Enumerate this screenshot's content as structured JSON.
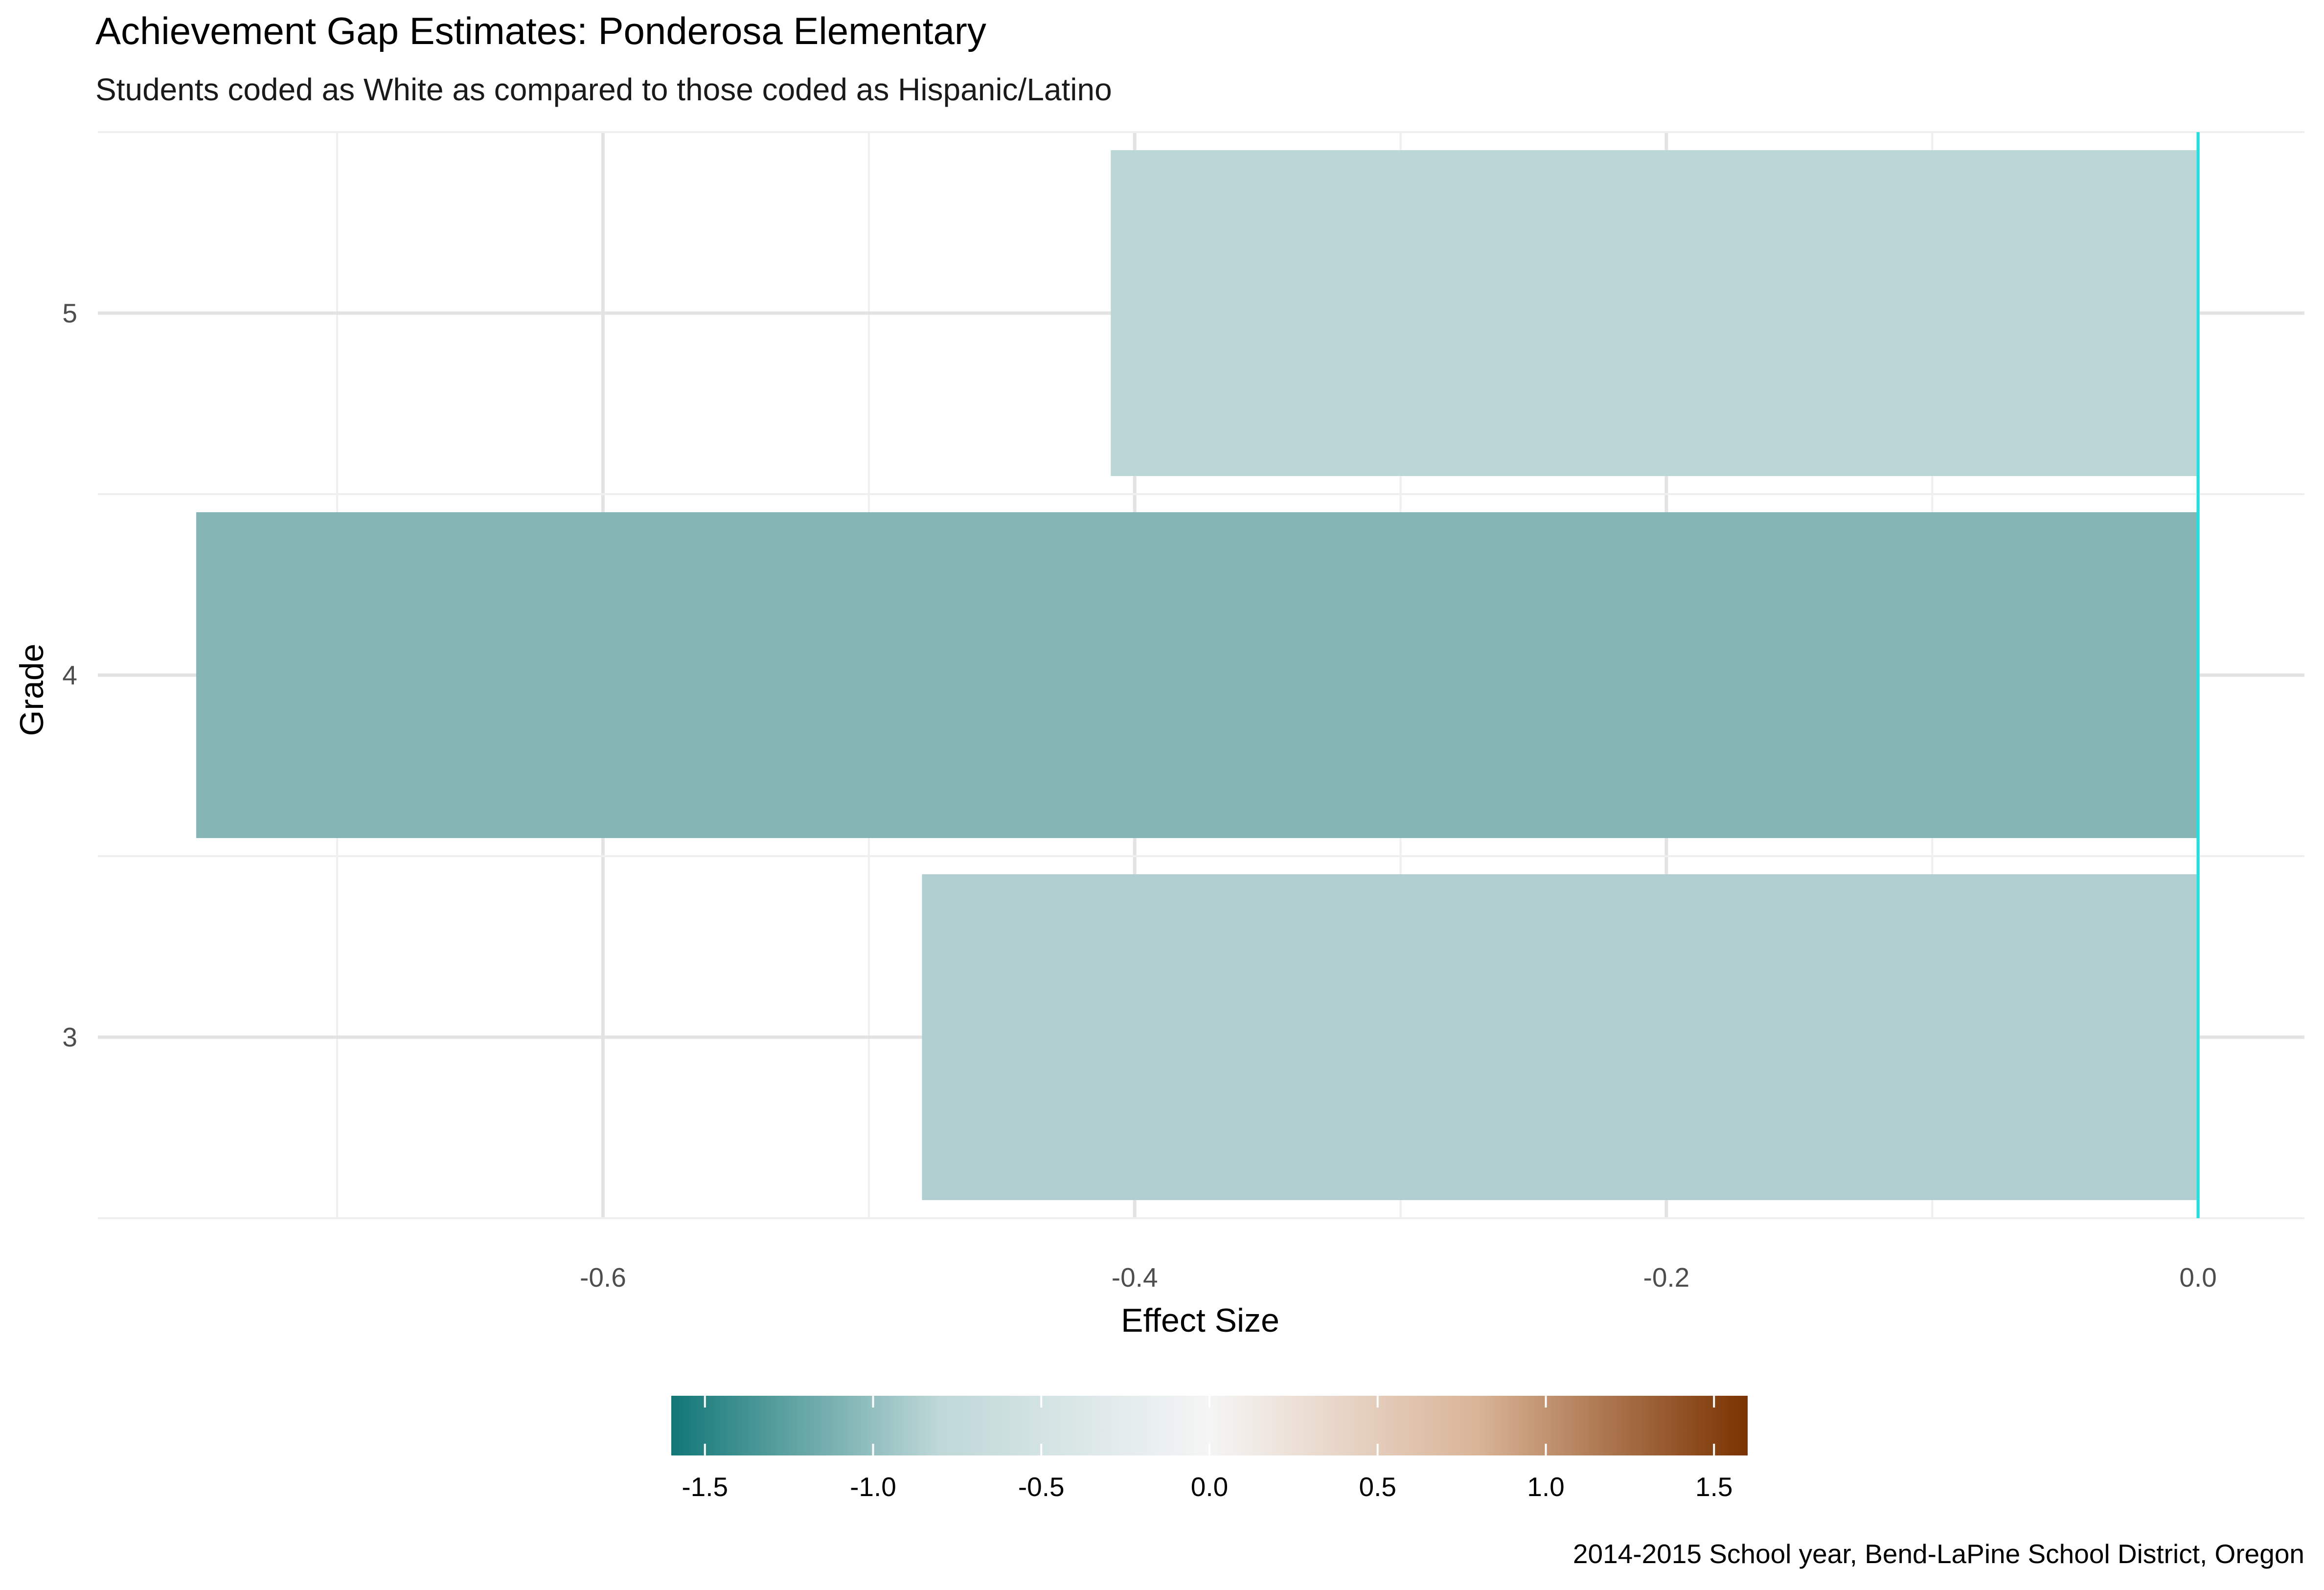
{
  "chart_data": {
    "type": "bar",
    "orientation": "horizontal",
    "title": "Achievement Gap Estimates: Ponderosa Elementary",
    "subtitle": "Students coded as White as compared to those coded as Hispanic/Latino",
    "xlabel": "Effect Size",
    "ylabel": "Grade",
    "caption": "2014-2015 School year, Bend-LaPine School District, Oregon",
    "categories": [
      "3",
      "4",
      "5"
    ],
    "values": [
      -0.48,
      -0.753,
      -0.409
    ],
    "bar_colors": [
      "#b1cfd0",
      "#85b5b5",
      "#bcd7d7"
    ],
    "xlim": [
      -0.79,
      0.04
    ],
    "x_ticks": [
      -0.6,
      -0.4,
      -0.2,
      0.0
    ],
    "x_tick_labels": [
      "-0.6",
      "-0.4",
      "-0.2",
      "0.0"
    ],
    "zero_line_color": "#22e0e0",
    "grid": true,
    "legend": {
      "position": "bottom",
      "type": "colorbar",
      "range": [
        -1.6,
        1.6
      ],
      "ticks": [
        -1.5,
        -1.0,
        -0.5,
        0.0,
        0.5,
        1.0,
        1.5
      ],
      "tick_labels": [
        "-1.5",
        "-1.0",
        "-0.5",
        "0.0",
        "0.5",
        "1.0",
        "1.5"
      ],
      "colors": [
        "#127777",
        "#bfd8d8",
        "#f5f5f5",
        "#d9b497",
        "#7a3200"
      ]
    }
  }
}
